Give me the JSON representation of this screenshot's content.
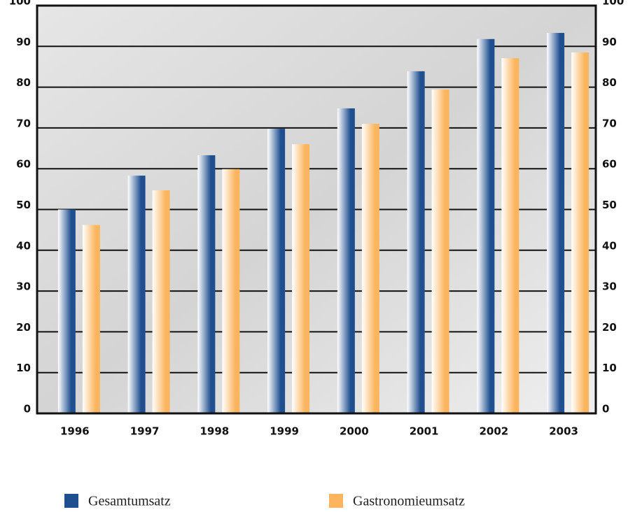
{
  "chart_data": {
    "type": "bar",
    "categories": [
      "1996",
      "1997",
      "1998",
      "1999",
      "2000",
      "2001",
      "2002",
      "2003"
    ],
    "series": [
      {
        "name": "Gesamtumsatz",
        "color": "#1f4f8f",
        "values": [
          50,
          58.3,
          63.3,
          69.8,
          74.8,
          83.9,
          91.8,
          93.3
        ]
      },
      {
        "name": "Gastronomieumsatz",
        "color": "#fbb55e",
        "values": [
          46.2,
          54.7,
          59.9,
          66,
          71,
          79.4,
          87.1,
          88.5
        ]
      }
    ],
    "ylim": [
      0,
      100
    ],
    "yticks": [
      0,
      10,
      20,
      30,
      40,
      50,
      60,
      70,
      80,
      90,
      100
    ],
    "grid": true
  }
}
